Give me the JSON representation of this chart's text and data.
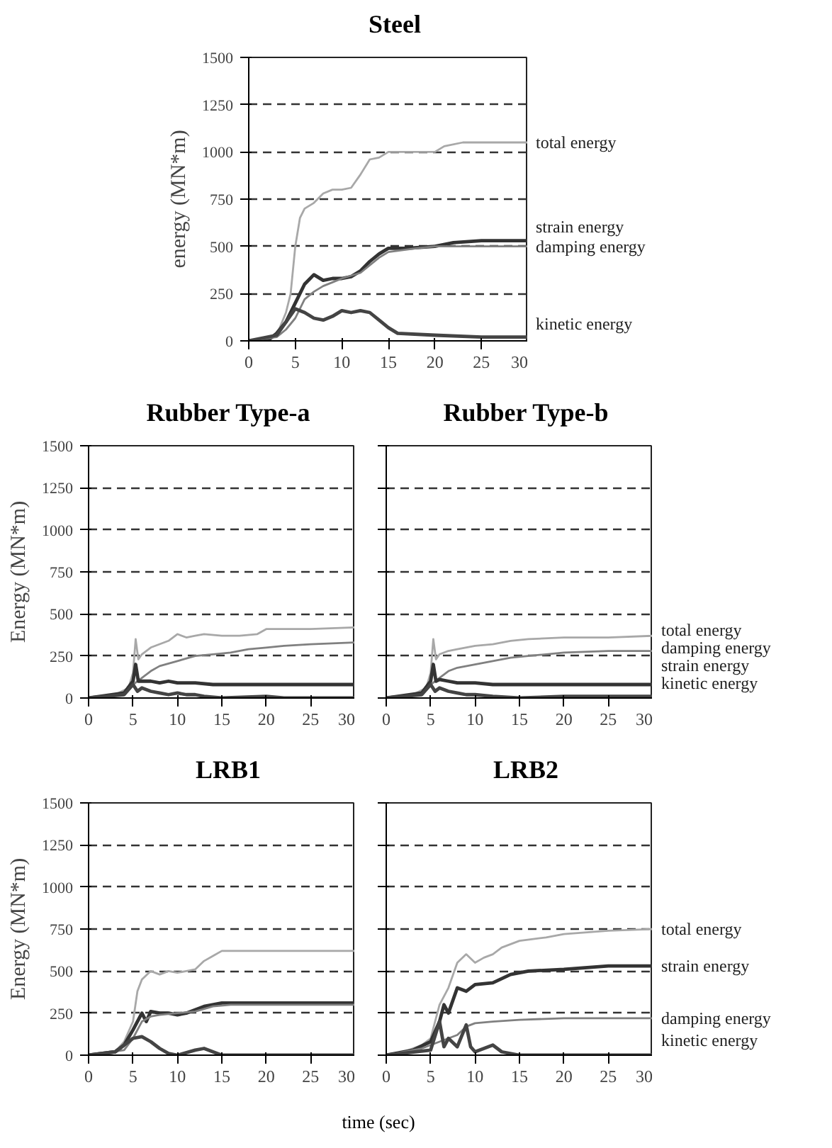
{
  "chart_data": [
    {
      "type": "line",
      "title": "Steel",
      "ylabel": "energy (MN*m)",
      "xlim": [
        0,
        30
      ],
      "ylim": [
        0,
        1500
      ],
      "xticks": [
        0,
        5,
        10,
        15,
        20,
        25,
        30
      ],
      "yticks": [
        0,
        250,
        500,
        750,
        1000,
        1250,
        1500
      ],
      "grid": "y",
      "series": [
        {
          "name": "total energy",
          "color": "#a8a8a8",
          "x": [
            0,
            2,
            3,
            4,
            4.5,
            5,
            5.5,
            6,
            7,
            8,
            9,
            10,
            11,
            12,
            13,
            14,
            15,
            17,
            20,
            21,
            23,
            25,
            30
          ],
          "values": [
            0,
            0,
            30,
            150,
            250,
            500,
            650,
            700,
            730,
            780,
            800,
            800,
            810,
            880,
            960,
            970,
            1000,
            1000,
            1000,
            1030,
            1050,
            1050,
            1050
          ]
        },
        {
          "name": "strain energy",
          "color": "#333333",
          "x": [
            0,
            2,
            3,
            4,
            5,
            6,
            7,
            8,
            9,
            10,
            11,
            12,
            13,
            14,
            15,
            17,
            20,
            22,
            25,
            30
          ],
          "values": [
            0,
            0,
            40,
            100,
            200,
            300,
            350,
            320,
            330,
            330,
            340,
            370,
            420,
            460,
            490,
            490,
            500,
            520,
            530,
            530
          ]
        },
        {
          "name": "damping energy",
          "color": "#808080",
          "x": [
            0,
            3,
            4,
            5,
            6,
            7,
            8,
            9,
            10,
            12,
            14,
            15,
            18,
            20,
            25,
            30
          ],
          "values": [
            0,
            20,
            60,
            120,
            220,
            260,
            290,
            310,
            330,
            360,
            440,
            470,
            490,
            500,
            500,
            500
          ]
        },
        {
          "name": "kinetic energy",
          "color": "#444444",
          "x": [
            0,
            3,
            4,
            5,
            6,
            7,
            8,
            9,
            10,
            11,
            12,
            13,
            14,
            15,
            16,
            20,
            25,
            30
          ],
          "values": [
            0,
            30,
            100,
            170,
            150,
            120,
            110,
            130,
            160,
            150,
            160,
            150,
            110,
            70,
            40,
            30,
            20,
            20
          ]
        }
      ]
    },
    {
      "type": "line",
      "title": "Rubber Type-a",
      "ylabel": "Energy (MN*m)",
      "xlim": [
        0,
        30
      ],
      "ylim": [
        0,
        1500
      ],
      "xticks": [
        0,
        5,
        10,
        15,
        20,
        25,
        30
      ],
      "yticks": [
        0,
        250,
        500,
        750,
        1000,
        1250,
        1500
      ],
      "grid": "y",
      "series": [
        {
          "color": "#a8a8a8",
          "x": [
            0,
            3,
            4.5,
            5,
            5.3,
            5.6,
            6,
            7,
            8,
            9,
            10,
            11,
            12,
            13,
            15,
            17,
            19,
            20,
            22,
            25,
            30
          ],
          "values": [
            0,
            20,
            60,
            150,
            350,
            230,
            260,
            300,
            320,
            340,
            380,
            360,
            370,
            380,
            370,
            370,
            380,
            410,
            410,
            410,
            420
          ]
        },
        {
          "color": "#808080",
          "x": [
            0,
            4,
            5,
            6,
            7,
            8,
            10,
            12,
            14,
            16,
            18,
            20,
            22,
            25,
            30
          ],
          "values": [
            0,
            20,
            80,
            120,
            160,
            190,
            220,
            250,
            260,
            270,
            290,
            300,
            310,
            320,
            330
          ]
        },
        {
          "color": "#333333",
          "x": [
            0,
            4,
            5,
            5.3,
            5.6,
            6,
            7,
            8,
            9,
            10,
            12,
            14,
            16,
            20,
            21,
            25,
            30
          ],
          "values": [
            0,
            30,
            100,
            200,
            100,
            100,
            100,
            90,
            100,
            90,
            90,
            80,
            80,
            80,
            80,
            80,
            80
          ]
        },
        {
          "color": "#444444",
          "x": [
            0,
            4,
            5,
            5.5,
            6,
            7,
            8,
            9,
            10,
            11,
            12,
            13,
            15,
            20,
            22,
            30
          ],
          "values": [
            0,
            20,
            80,
            40,
            60,
            40,
            30,
            20,
            30,
            20,
            20,
            10,
            0,
            10,
            0,
            0
          ]
        }
      ]
    },
    {
      "type": "line",
      "title": "Rubber Type-b",
      "xlim": [
        0,
        30
      ],
      "ylim": [
        0,
        1500
      ],
      "xticks": [
        0,
        5,
        10,
        15,
        20,
        25,
        30
      ],
      "yticks": [
        0,
        250,
        500,
        750,
        1000,
        1250,
        1500
      ],
      "grid": "y",
      "tick_labels": "x",
      "series": [
        {
          "name": "total energy",
          "color": "#a8a8a8",
          "x": [
            0,
            3,
            4.5,
            5,
            5.3,
            5.6,
            6,
            7,
            8,
            10,
            12,
            14,
            16,
            20,
            25,
            30
          ],
          "values": [
            0,
            20,
            60,
            150,
            350,
            230,
            260,
            280,
            290,
            310,
            320,
            340,
            350,
            360,
            360,
            370
          ]
        },
        {
          "name": "damping energy",
          "color": "#808080",
          "x": [
            0,
            4,
            5,
            6,
            7,
            8,
            10,
            12,
            14,
            16,
            18,
            20,
            25,
            30
          ],
          "values": [
            0,
            20,
            80,
            120,
            160,
            180,
            200,
            220,
            240,
            250,
            260,
            270,
            280,
            280
          ]
        },
        {
          "name": "strain energy",
          "color": "#333333",
          "x": [
            0,
            4,
            5,
            5.3,
            5.6,
            6,
            7,
            8,
            10,
            12,
            14,
            16,
            20,
            25,
            30
          ],
          "values": [
            0,
            30,
            100,
            200,
            100,
            110,
            100,
            90,
            90,
            80,
            80,
            80,
            80,
            80,
            80
          ]
        },
        {
          "name": "kinetic energy",
          "color": "#444444",
          "x": [
            0,
            4,
            5,
            5.5,
            6,
            7,
            8,
            9,
            10,
            12,
            15,
            20,
            30
          ],
          "values": [
            0,
            20,
            80,
            40,
            60,
            40,
            30,
            20,
            20,
            10,
            0,
            10,
            10
          ]
        }
      ]
    },
    {
      "type": "line",
      "title": "LRB1",
      "ylabel": "Energy (MN*m)",
      "xlabel": "time (sec)",
      "xlim": [
        0,
        30
      ],
      "ylim": [
        0,
        1500
      ],
      "xticks": [
        0,
        5,
        10,
        15,
        20,
        25,
        30
      ],
      "yticks": [
        0,
        250,
        500,
        750,
        1000,
        1250,
        1500
      ],
      "grid": "y",
      "series": [
        {
          "color": "#a8a8a8",
          "x": [
            0,
            3,
            4,
            5,
            5.5,
            6,
            7,
            8,
            9,
            10,
            11,
            12,
            13,
            14,
            15,
            20,
            30
          ],
          "values": [
            0,
            20,
            80,
            200,
            380,
            450,
            500,
            480,
            500,
            490,
            500,
            510,
            560,
            590,
            620,
            620,
            620
          ]
        },
        {
          "color": "#333333",
          "x": [
            0,
            3,
            4,
            5,
            6,
            6.5,
            7,
            8,
            9,
            10,
            11,
            12,
            13,
            15,
            20,
            30
          ],
          "values": [
            0,
            20,
            60,
            150,
            250,
            200,
            260,
            250,
            250,
            240,
            250,
            270,
            290,
            310,
            310,
            310
          ]
        },
        {
          "color": "#808080",
          "x": [
            0,
            4,
            5,
            6,
            7,
            8,
            10,
            12,
            14,
            16,
            30
          ],
          "values": [
            0,
            30,
            100,
            200,
            230,
            240,
            250,
            260,
            290,
            300,
            300
          ]
        },
        {
          "color": "#444444",
          "x": [
            0,
            3,
            4,
            5,
            6,
            7,
            8,
            9,
            10,
            12,
            13,
            14,
            15,
            20,
            30
          ],
          "values": [
            0,
            20,
            60,
            100,
            110,
            80,
            40,
            10,
            0,
            30,
            40,
            20,
            0,
            0,
            0
          ]
        }
      ]
    },
    {
      "type": "line",
      "title": "LRB2",
      "xlim": [
        0,
        30
      ],
      "ylim": [
        0,
        1500
      ],
      "xticks": [
        0,
        5,
        10,
        15,
        20,
        25,
        30
      ],
      "yticks": [
        0,
        250,
        500,
        750,
        1000,
        1250,
        1500
      ],
      "grid": "y",
      "tick_labels": "x",
      "series": [
        {
          "name": "total energy",
          "color": "#a8a8a8",
          "x": [
            0,
            2,
            4,
            5,
            6,
            7,
            8,
            9,
            10,
            11,
            12,
            13,
            15,
            18,
            20,
            25,
            30
          ],
          "values": [
            0,
            20,
            60,
            100,
            300,
            400,
            550,
            600,
            550,
            580,
            600,
            640,
            680,
            700,
            720,
            740,
            750
          ]
        },
        {
          "name": "strain energy",
          "color": "#333333",
          "x": [
            0,
            3,
            5,
            6,
            6.5,
            7,
            8,
            9,
            10,
            12,
            14,
            16,
            20,
            25,
            30
          ],
          "values": [
            0,
            30,
            80,
            200,
            300,
            250,
            400,
            380,
            420,
            430,
            480,
            500,
            510,
            530,
            530
          ]
        },
        {
          "name": "damping energy",
          "color": "#808080",
          "x": [
            0,
            4,
            6,
            7,
            8,
            9,
            10,
            12,
            15,
            20,
            25,
            30
          ],
          "values": [
            0,
            40,
            80,
            100,
            120,
            170,
            190,
            200,
            210,
            220,
            220,
            220
          ]
        },
        {
          "name": "kinetic energy",
          "color": "#444444",
          "x": [
            0,
            5,
            6,
            6.5,
            7,
            8,
            9,
            9.5,
            10,
            12,
            13,
            15,
            20,
            30
          ],
          "values": [
            0,
            30,
            200,
            50,
            100,
            50,
            180,
            50,
            20,
            60,
            20,
            0,
            0,
            0
          ]
        }
      ]
    }
  ]
}
